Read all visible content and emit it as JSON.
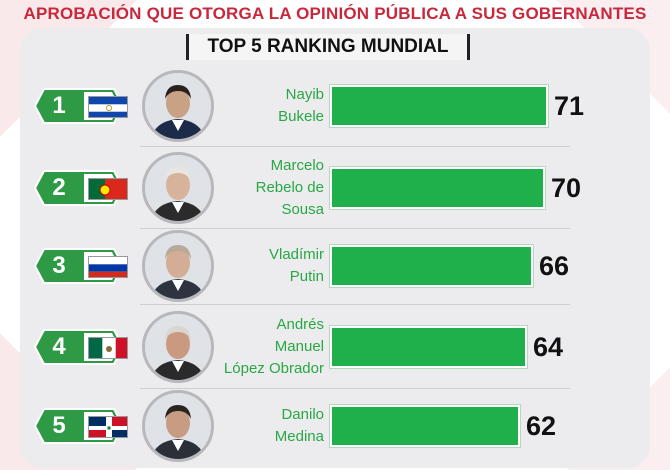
{
  "headline": "APROBACIÓN QUE OTORGA LA OPINIÓN PÚBLICA A SUS GOBERNANTES",
  "subtitle": "TOP 5 RANKING MUNDIAL",
  "colors": {
    "headline": "#c8283c",
    "bar": "#20b04b",
    "badge": "#2e9a45",
    "name": "#28a745"
  },
  "chart_data": {
    "type": "bar",
    "orientation": "horizontal",
    "title": "APROBACIÓN QUE OTORGA LA OPINIÓN PÚBLICA A SUS GOBERNANTES",
    "subtitle": "TOP 5 RANKING MUNDIAL",
    "categories": [
      "Nayib Bukele",
      "Marcelo Rebelo de Sousa",
      "Vladímir Putin",
      "Andrés Manuel López Obrador",
      "Danilo Medina"
    ],
    "values": [
      71,
      70,
      66,
      64,
      62
    ],
    "xlim": [
      0,
      71
    ],
    "grid": false
  },
  "rows": [
    {
      "rank": "1",
      "flag": "el-salvador-flag",
      "photo": "nayib-bukele-photo",
      "name_lines": [
        "Nayib",
        "Bukele"
      ],
      "value": 71
    },
    {
      "rank": "2",
      "flag": "portugal-flag",
      "photo": "marcelo-rebelo-de-sousa-photo",
      "name_lines": [
        "Marcelo",
        "Rebelo de",
        "Sousa"
      ],
      "value": 70
    },
    {
      "rank": "3",
      "flag": "russia-flag",
      "photo": "vladimir-putin-photo",
      "name_lines": [
        "Vladímir",
        "Putin"
      ],
      "value": 66
    },
    {
      "rank": "4",
      "flag": "mexico-flag",
      "photo": "lopez-obrador-photo",
      "name_lines": [
        "Andrés",
        "Manuel",
        "López Obrador"
      ],
      "value": 64
    },
    {
      "rank": "5",
      "flag": "dominican-republic-flag",
      "photo": "danilo-medina-photo",
      "name_lines": [
        "Danilo",
        "Medina"
      ],
      "value": 62
    }
  ]
}
